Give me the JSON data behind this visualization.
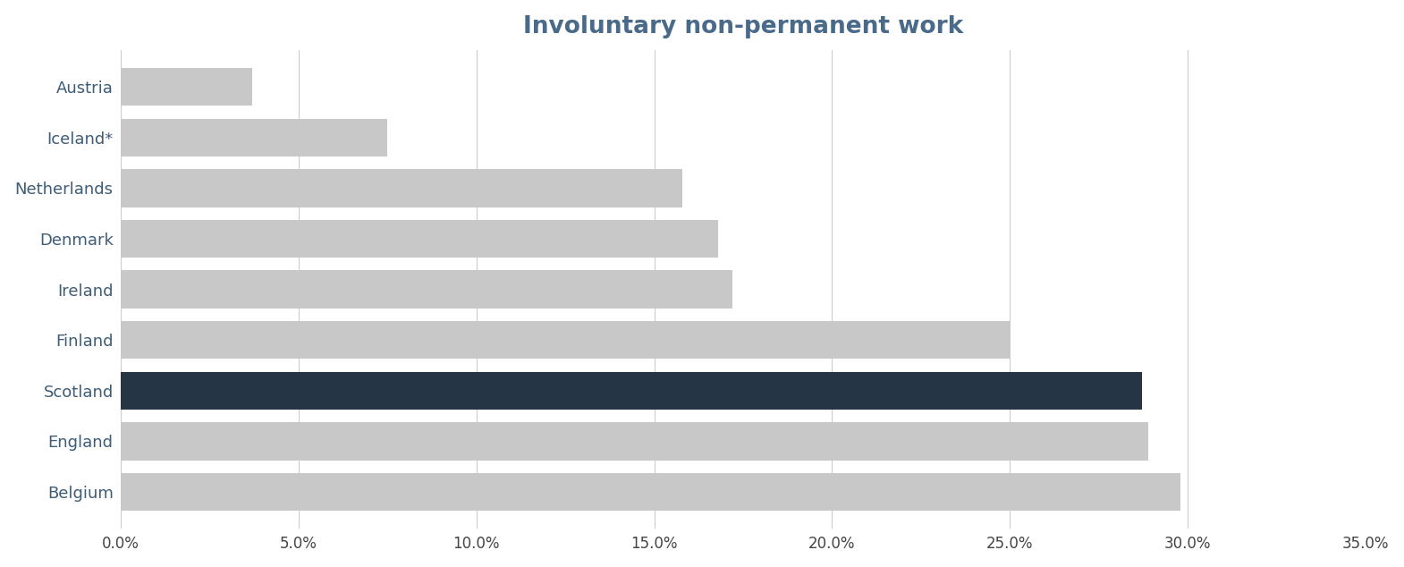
{
  "title": "Involuntary non-permanent work",
  "categories": [
    "Belgium",
    "England",
    "Scotland",
    "Finland",
    "Ireland",
    "Denmark",
    "Netherlands",
    "Iceland*",
    "Austria"
  ],
  "values": [
    29.8,
    28.9,
    28.7,
    25.0,
    17.2,
    16.8,
    15.8,
    7.5,
    3.7
  ],
  "bar_colors": [
    "#c8c8c8",
    "#c8c8c8",
    "#253545",
    "#c8c8c8",
    "#c8c8c8",
    "#c8c8c8",
    "#c8c8c8",
    "#c8c8c8",
    "#c8c8c8"
  ],
  "xlim": [
    0,
    35
  ],
  "xticks": [
    0,
    5,
    10,
    15,
    20,
    25,
    30,
    35
  ],
  "title_color": "#4a6a8a",
  "label_color": "#3d5c78",
  "background_color": "#ffffff",
  "title_fontsize": 19,
  "label_fontsize": 13,
  "tick_fontsize": 12,
  "bar_height": 0.75
}
